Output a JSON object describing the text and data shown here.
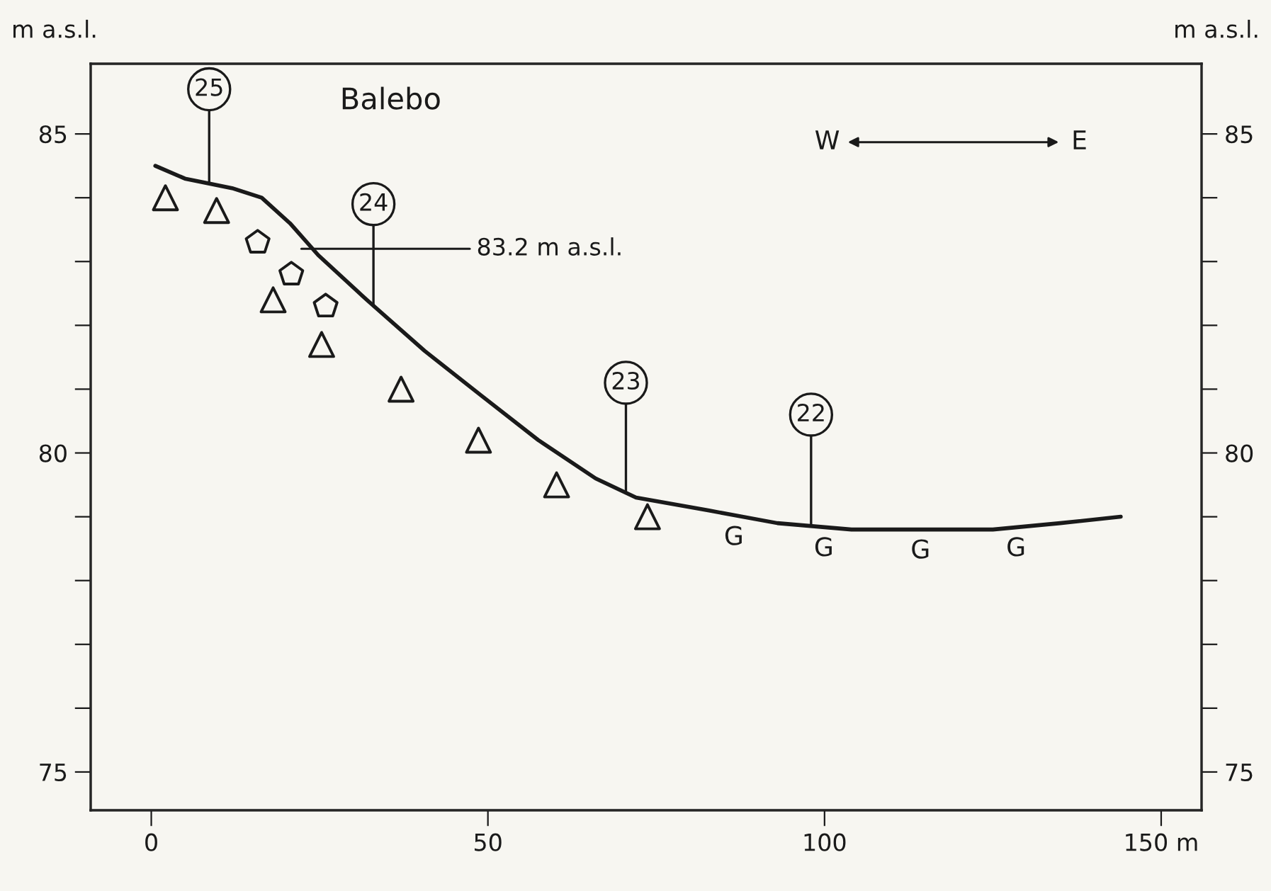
{
  "chart_data": {
    "type": "line",
    "title": "Balebo",
    "ylabel": "m a.s.l.",
    "y2label": "m a.s.l.",
    "xlim": [
      -9,
      156
    ],
    "ylim": [
      74.4,
      86.1
    ],
    "y2lim": [
      74.4,
      86.1
    ],
    "xticks": [
      0,
      50,
      100,
      {
        "value": 150,
        "label": "150 m"
      }
    ],
    "yticks": [
      75,
      {
        "value": 76,
        "label": null
      },
      {
        "value": 77,
        "label": null
      },
      {
        "value": 78,
        "label": null
      },
      {
        "value": 79,
        "label": null
      },
      80,
      {
        "value": 81,
        "label": null
      },
      {
        "value": 82,
        "label": null
      },
      {
        "value": 83,
        "label": null
      },
      {
        "value": 84,
        "label": null
      },
      85
    ],
    "y2ticks": [
      75,
      {
        "value": 76,
        "label": null
      },
      {
        "value": 77,
        "label": null
      },
      {
        "value": 78,
        "label": null
      },
      {
        "value": 79,
        "label": null
      },
      80,
      {
        "value": 81,
        "label": null
      },
      {
        "value": 82,
        "label": null
      },
      {
        "value": 83,
        "label": null
      },
      {
        "value": 84,
        "label": null
      },
      85
    ],
    "grid": false,
    "series": [
      {
        "color": "#1a1a1a",
        "marker": "none",
        "x": [
          0.6,
          5,
          12,
          16.4,
          20.6,
          24.8,
          32,
          40.6,
          49,
          57.5,
          66,
          72,
          82.7,
          93,
          104,
          114,
          125,
          135,
          144
        ],
        "values": [
          84.5,
          84.3,
          84.15,
          84.0,
          83.6,
          83.1,
          82.4,
          81.6,
          80.9,
          80.2,
          79.6,
          79.3,
          79.1,
          78.9,
          78.8,
          78.8,
          78.8,
          78.9,
          79.0
        ]
      },
      {
        "type": "scatter",
        "color": "#1a1a1a",
        "marker": "triangle",
        "x": [
          2.1,
          9.7,
          18.1,
          25.3,
          37.1,
          48.6,
          60.2,
          73.7
        ],
        "values": [
          84.0,
          83.8,
          82.4,
          81.7,
          81.0,
          80.2,
          79.5,
          79.0
        ]
      },
      {
        "type": "scatter",
        "color": "#1a1a1a",
        "x": [
          15.8,
          20.8,
          25.9
        ],
        "values": [
          83.3,
          82.8,
          82.3
        ]
      }
    ],
    "annotations": [
      {
        "text": "25",
        "x": 8.6,
        "y": 85.7
      },
      {
        "text": "24",
        "x": 33,
        "y": 83.9
      },
      {
        "text": "23",
        "x": 70.5,
        "y": 81.1
      },
      {
        "text": "22",
        "x": 98,
        "y": 80.6
      },
      {
        "text": "83.2 m a.s.l.",
        "x": 22.3,
        "y": 83.2
      },
      "W",
      "E",
      "G",
      "G",
      "G",
      "G"
    ]
  }
}
